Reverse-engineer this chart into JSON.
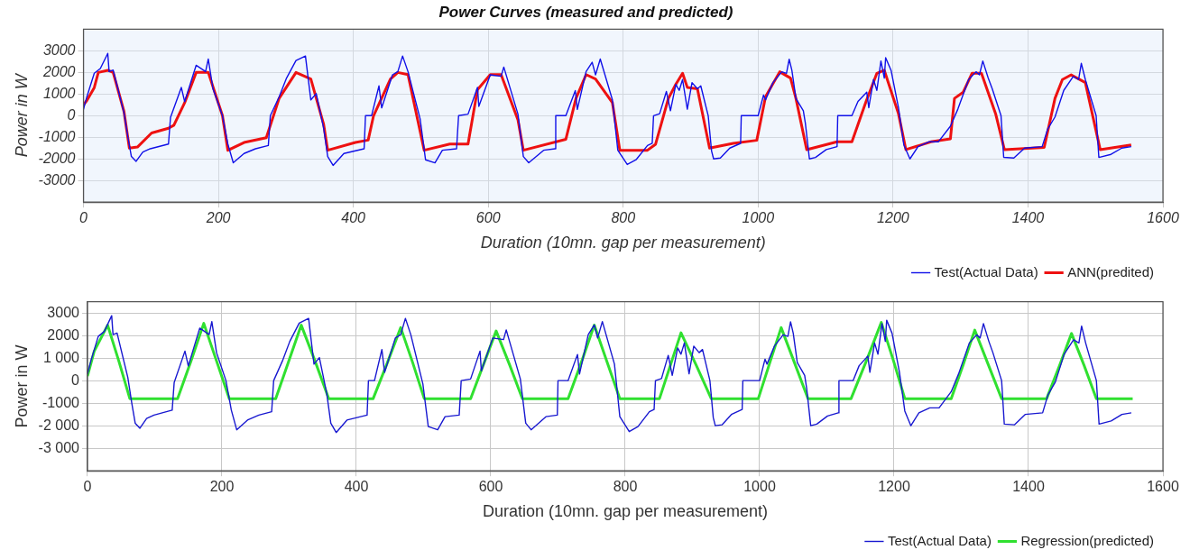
{
  "chart_data": [
    {
      "type": "line",
      "title": "Power Curves (measured and predicted)",
      "xlabel": "Duration (10mn. gap per measurement)",
      "ylabel": "Power in W",
      "xlim": [
        0,
        1600
      ],
      "xticks": [
        0,
        200,
        400,
        600,
        800,
        1000,
        1200,
        1400,
        1600
      ],
      "ylim": [
        -4000,
        4000
      ],
      "yticks": [
        -3000,
        -2000,
        -1000,
        0,
        1000,
        2000,
        3000
      ],
      "grid": true,
      "legend": "bottom right",
      "marker": "none",
      "line_style": "solid",
      "series": [
        {
          "name": "Test(Actual Data)",
          "color": "#1010e8",
          "x": [
            0,
            5,
            16,
            25,
            36,
            38,
            44,
            60,
            66,
            71,
            78,
            88,
            99,
            126,
            129,
            140,
            145,
            150,
            167,
            181,
            185,
            192,
            206,
            214,
            222,
            238,
            255,
            274,
            277,
            290,
            301,
            315,
            329,
            337,
            345,
            356,
            362,
            370,
            386,
            416,
            418,
            427,
            438,
            442,
            458,
            466,
            473,
            481,
            499,
            507,
            521,
            532,
            553,
            556,
            570,
            584,
            586,
            603,
            619,
            623,
            644,
            652,
            660,
            682,
            699,
            700,
            715,
            729,
            732,
            745,
            754,
            759,
            766,
            784,
            792,
            806,
            819,
            836,
            843,
            845,
            854,
            864,
            870,
            878,
            883,
            888,
            895,
            902,
            910,
            915,
            926,
            931,
            934,
            944,
            958,
            974,
            975,
            1000,
            1008,
            1011,
            1022,
            1035,
            1042,
            1046,
            1050,
            1056,
            1067,
            1070,
            1076,
            1085,
            1101,
            1117,
            1118,
            1139,
            1148,
            1161,
            1164,
            1171,
            1176,
            1182,
            1187,
            1189,
            1197,
            1208,
            1216,
            1225,
            1237,
            1253,
            1267,
            1285,
            1296,
            1312,
            1323,
            1328,
            1333,
            1341,
            1347,
            1360,
            1364,
            1379,
            1395,
            1421,
            1429,
            1440,
            1453,
            1467,
            1475,
            1479,
            1485,
            1501,
            1505,
            1523,
            1539,
            1553
          ],
          "values": [
            290,
            870,
            1960,
            2180,
            2880,
            2040,
            2110,
            140,
            -1020,
            -1890,
            -2110,
            -1680,
            -1530,
            -1310,
            -80,
            870,
            1310,
            650,
            2330,
            2040,
            2620,
            1240,
            0,
            -1310,
            -2180,
            -1750,
            -1530,
            -1380,
            0,
            870,
            1740,
            2550,
            2760,
            730,
            1020,
            -580,
            -1890,
            -2300,
            -1750,
            -1530,
            0,
            0,
            1380,
            360,
            1890,
            2040,
            2760,
            2040,
            -150,
            -2040,
            -2180,
            -1600,
            -1530,
            0,
            70,
            1310,
            430,
            1890,
            1820,
            2250,
            70,
            -1890,
            -2180,
            -1600,
            -1530,
            0,
            0,
            1160,
            290,
            2040,
            2470,
            1890,
            2620,
            730,
            -1600,
            -2260,
            -2040,
            -1380,
            -1280,
            0,
            90,
            1120,
            230,
            1450,
            1170,
            1670,
            300,
            1530,
            1240,
            1380,
            0,
            -1640,
            -2000,
            -1960,
            -1500,
            -1280,
            0,
            0,
            950,
            730,
            1530,
            2030,
            1960,
            2610,
            2100,
            800,
            230,
            -350,
            -2000,
            -1930,
            -1570,
            -1430,
            0,
            0,
            660,
            1090,
            370,
            1670,
            1170,
            2530,
            1740,
            2680,
            2100,
            370,
            -1350,
            -2000,
            -1430,
            -1210,
            -1210,
            -490,
            300,
            1670,
            2030,
            1890,
            2530,
            1740,
            1240,
            0,
            -1930,
            -1960,
            -1500,
            -1430,
            -630,
            -60,
            1170,
            1810,
            1670,
            2420,
            1670,
            0,
            -1930,
            -1790,
            -1500,
            -1430
          ]
        },
        {
          "name": "ANN(predited)",
          "color": "#ee1111",
          "x": [
            0,
            5,
            16,
            22,
            36,
            44,
            60,
            68,
            80,
            101,
            126,
            134,
            150,
            167,
            185,
            206,
            214,
            238,
            271,
            290,
            315,
            337,
            356,
            362,
            403,
            422,
            430,
            455,
            466,
            481,
            505,
            543,
            570,
            584,
            603,
            619,
            644,
            652,
            715,
            730,
            745,
            759,
            784,
            795,
            836,
            848,
            867,
            878,
            888,
            895,
            910,
            928,
            963,
            998,
            1011,
            1032,
            1048,
            1056,
            1072,
            1117,
            1139,
            1160,
            1176,
            1187,
            1208,
            1219,
            1256,
            1285,
            1291,
            1304,
            1317,
            1331,
            1352,
            1365,
            1424,
            1440,
            1451,
            1464,
            1485,
            1507,
            1553
          ],
          "values": [
            500,
            700,
            1300,
            2000,
            2100,
            2000,
            200,
            -1500,
            -1450,
            -800,
            -580,
            -440,
            600,
            2000,
            2000,
            0,
            -1600,
            -1240,
            -1020,
            800,
            2000,
            1700,
            -400,
            -1600,
            -1240,
            -1130,
            0,
            1700,
            2000,
            1900,
            -1600,
            -1310,
            -1310,
            1200,
            1900,
            1900,
            -200,
            -1600,
            -1090,
            800,
            1900,
            1700,
            600,
            -1600,
            -1600,
            -1320,
            800,
            1450,
            1960,
            1310,
            1240,
            -1500,
            -1280,
            -1140,
            880,
            2030,
            1740,
            800,
            -1570,
            -1210,
            -1210,
            660,
            1960,
            2100,
            90,
            -1570,
            -1210,
            -1070,
            800,
            1090,
            1960,
            1960,
            90,
            -1570,
            -1470,
            800,
            1670,
            1890,
            1530,
            -1570,
            -1350
          ]
        }
      ]
    },
    {
      "type": "line",
      "xlabel": "Duration (10mn. gap per measurement)",
      "ylabel": "Power in W",
      "xlim": [
        0,
        1600
      ],
      "xticks": [
        0,
        200,
        400,
        600,
        800,
        1000,
        1200,
        1400,
        1600
      ],
      "ylim": [
        -4000,
        3500
      ],
      "yticks": [
        {
          "value": -3000,
          "label": "-3 000"
        },
        {
          "value": -2000,
          "label": "-2 000"
        },
        -1000,
        0,
        {
          "value": 1000,
          "label": "1 000"
        },
        2000,
        3000
      ],
      "grid": true,
      "legend": "bottom right",
      "marker": "none",
      "line_style": "solid",
      "series": [
        {
          "name": "Test(Actual Data)",
          "color": "#1818d0",
          "x": [
            0,
            5,
            16,
            25,
            36,
            38,
            44,
            60,
            66,
            71,
            78,
            88,
            99,
            126,
            129,
            140,
            145,
            150,
            167,
            181,
            185,
            192,
            206,
            214,
            222,
            238,
            255,
            274,
            277,
            290,
            301,
            315,
            329,
            337,
            345,
            356,
            362,
            370,
            386,
            416,
            418,
            427,
            438,
            442,
            458,
            466,
            473,
            481,
            499,
            507,
            521,
            532,
            553,
            556,
            570,
            584,
            586,
            603,
            619,
            623,
            644,
            652,
            660,
            682,
            699,
            700,
            715,
            729,
            732,
            745,
            754,
            759,
            766,
            784,
            792,
            806,
            819,
            836,
            843,
            845,
            854,
            864,
            870,
            878,
            883,
            888,
            895,
            902,
            910,
            915,
            926,
            931,
            934,
            944,
            958,
            974,
            975,
            1000,
            1008,
            1011,
            1022,
            1035,
            1042,
            1046,
            1050,
            1056,
            1067,
            1070,
            1076,
            1085,
            1101,
            1117,
            1118,
            1139,
            1148,
            1161,
            1164,
            1171,
            1176,
            1182,
            1187,
            1189,
            1197,
            1208,
            1216,
            1225,
            1237,
            1253,
            1267,
            1285,
            1296,
            1312,
            1323,
            1328,
            1333,
            1341,
            1347,
            1360,
            1364,
            1379,
            1395,
            1421,
            1429,
            1440,
            1453,
            1467,
            1475,
            1479,
            1485,
            1501,
            1505,
            1523,
            1539,
            1553
          ],
          "values": [
            290,
            870,
            1960,
            2180,
            2880,
            2040,
            2110,
            140,
            -1020,
            -1890,
            -2110,
            -1680,
            -1530,
            -1310,
            -80,
            870,
            1310,
            650,
            2330,
            2040,
            2620,
            1240,
            0,
            -1310,
            -2180,
            -1750,
            -1530,
            -1380,
            0,
            870,
            1740,
            2550,
            2760,
            730,
            1020,
            -580,
            -1890,
            -2300,
            -1750,
            -1530,
            0,
            0,
            1380,
            360,
            1890,
            2040,
            2760,
            2040,
            -150,
            -2040,
            -2180,
            -1600,
            -1530,
            0,
            70,
            1310,
            430,
            1890,
            1820,
            2250,
            70,
            -1890,
            -2180,
            -1600,
            -1530,
            0,
            0,
            1160,
            290,
            2040,
            2470,
            1890,
            2620,
            730,
            -1600,
            -2260,
            -2040,
            -1380,
            -1280,
            0,
            90,
            1120,
            230,
            1450,
            1170,
            1670,
            300,
            1530,
            1240,
            1380,
            0,
            -1640,
            -2000,
            -1960,
            -1500,
            -1280,
            0,
            0,
            950,
            730,
            1530,
            2030,
            1960,
            2610,
            2100,
            800,
            230,
            -350,
            -2000,
            -1930,
            -1570,
            -1430,
            0,
            0,
            660,
            1090,
            370,
            1670,
            1170,
            2530,
            1740,
            2680,
            2100,
            370,
            -1350,
            -2000,
            -1430,
            -1210,
            -1210,
            -490,
            300,
            1670,
            2030,
            1890,
            2530,
            1740,
            1240,
            0,
            -1930,
            -1960,
            -1500,
            -1430,
            -630,
            -60,
            1170,
            1810,
            1670,
            2420,
            1670,
            0,
            -1930,
            -1790,
            -1500,
            -1430
          ]
        },
        {
          "name": "Regression(predicted)",
          "color": "#30e030",
          "x": [
            0,
            10,
            30,
            47,
            63,
            134,
            154,
            173,
            192,
            211,
            280,
            299,
            318,
            339,
            359,
            425,
            446,
            466,
            484,
            501,
            570,
            589,
            608,
            628,
            647,
            715,
            735,
            754,
            773,
            792,
            851,
            867,
            883,
            906,
            928,
            998,
            1015,
            1032,
            1052,
            1072,
            1136,
            1159,
            1181,
            1199,
            1216,
            1285,
            1303,
            1320,
            1340,
            1360,
            1427,
            1446,
            1464,
            1483,
            1501,
            1555
          ],
          "values": [
            200,
            1300,
            2460,
            830,
            -800,
            -800,
            870,
            2540,
            870,
            -800,
            -800,
            830,
            2460,
            830,
            -800,
            -800,
            780,
            2350,
            780,
            -800,
            -800,
            700,
            2200,
            700,
            -800,
            -800,
            830,
            2460,
            830,
            -800,
            -800,
            660,
            2120,
            660,
            -800,
            -800,
            780,
            2350,
            780,
            -800,
            -800,
            890,
            2580,
            890,
            -800,
            -800,
            720,
            2240,
            720,
            -800,
            -800,
            650,
            2090,
            650,
            -800,
            -800
          ]
        }
      ]
    }
  ]
}
